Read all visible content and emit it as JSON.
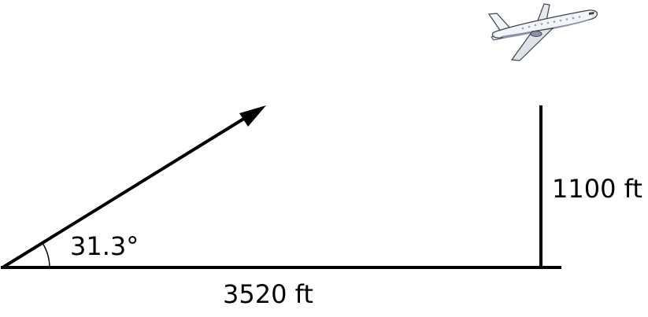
{
  "labels": {
    "angle": "31.3°",
    "base": "3520 ft",
    "height": "1100 ft"
  },
  "icons": {
    "aircraft": "airplane-icon",
    "direction": "arrow-icon"
  },
  "colors": {
    "stroke": "#000000",
    "plane_body": "#f2f4f7",
    "plane_shade": "#8a93a3",
    "plane_dark": "#3d4452",
    "plane_window": "#8da4c2"
  }
}
